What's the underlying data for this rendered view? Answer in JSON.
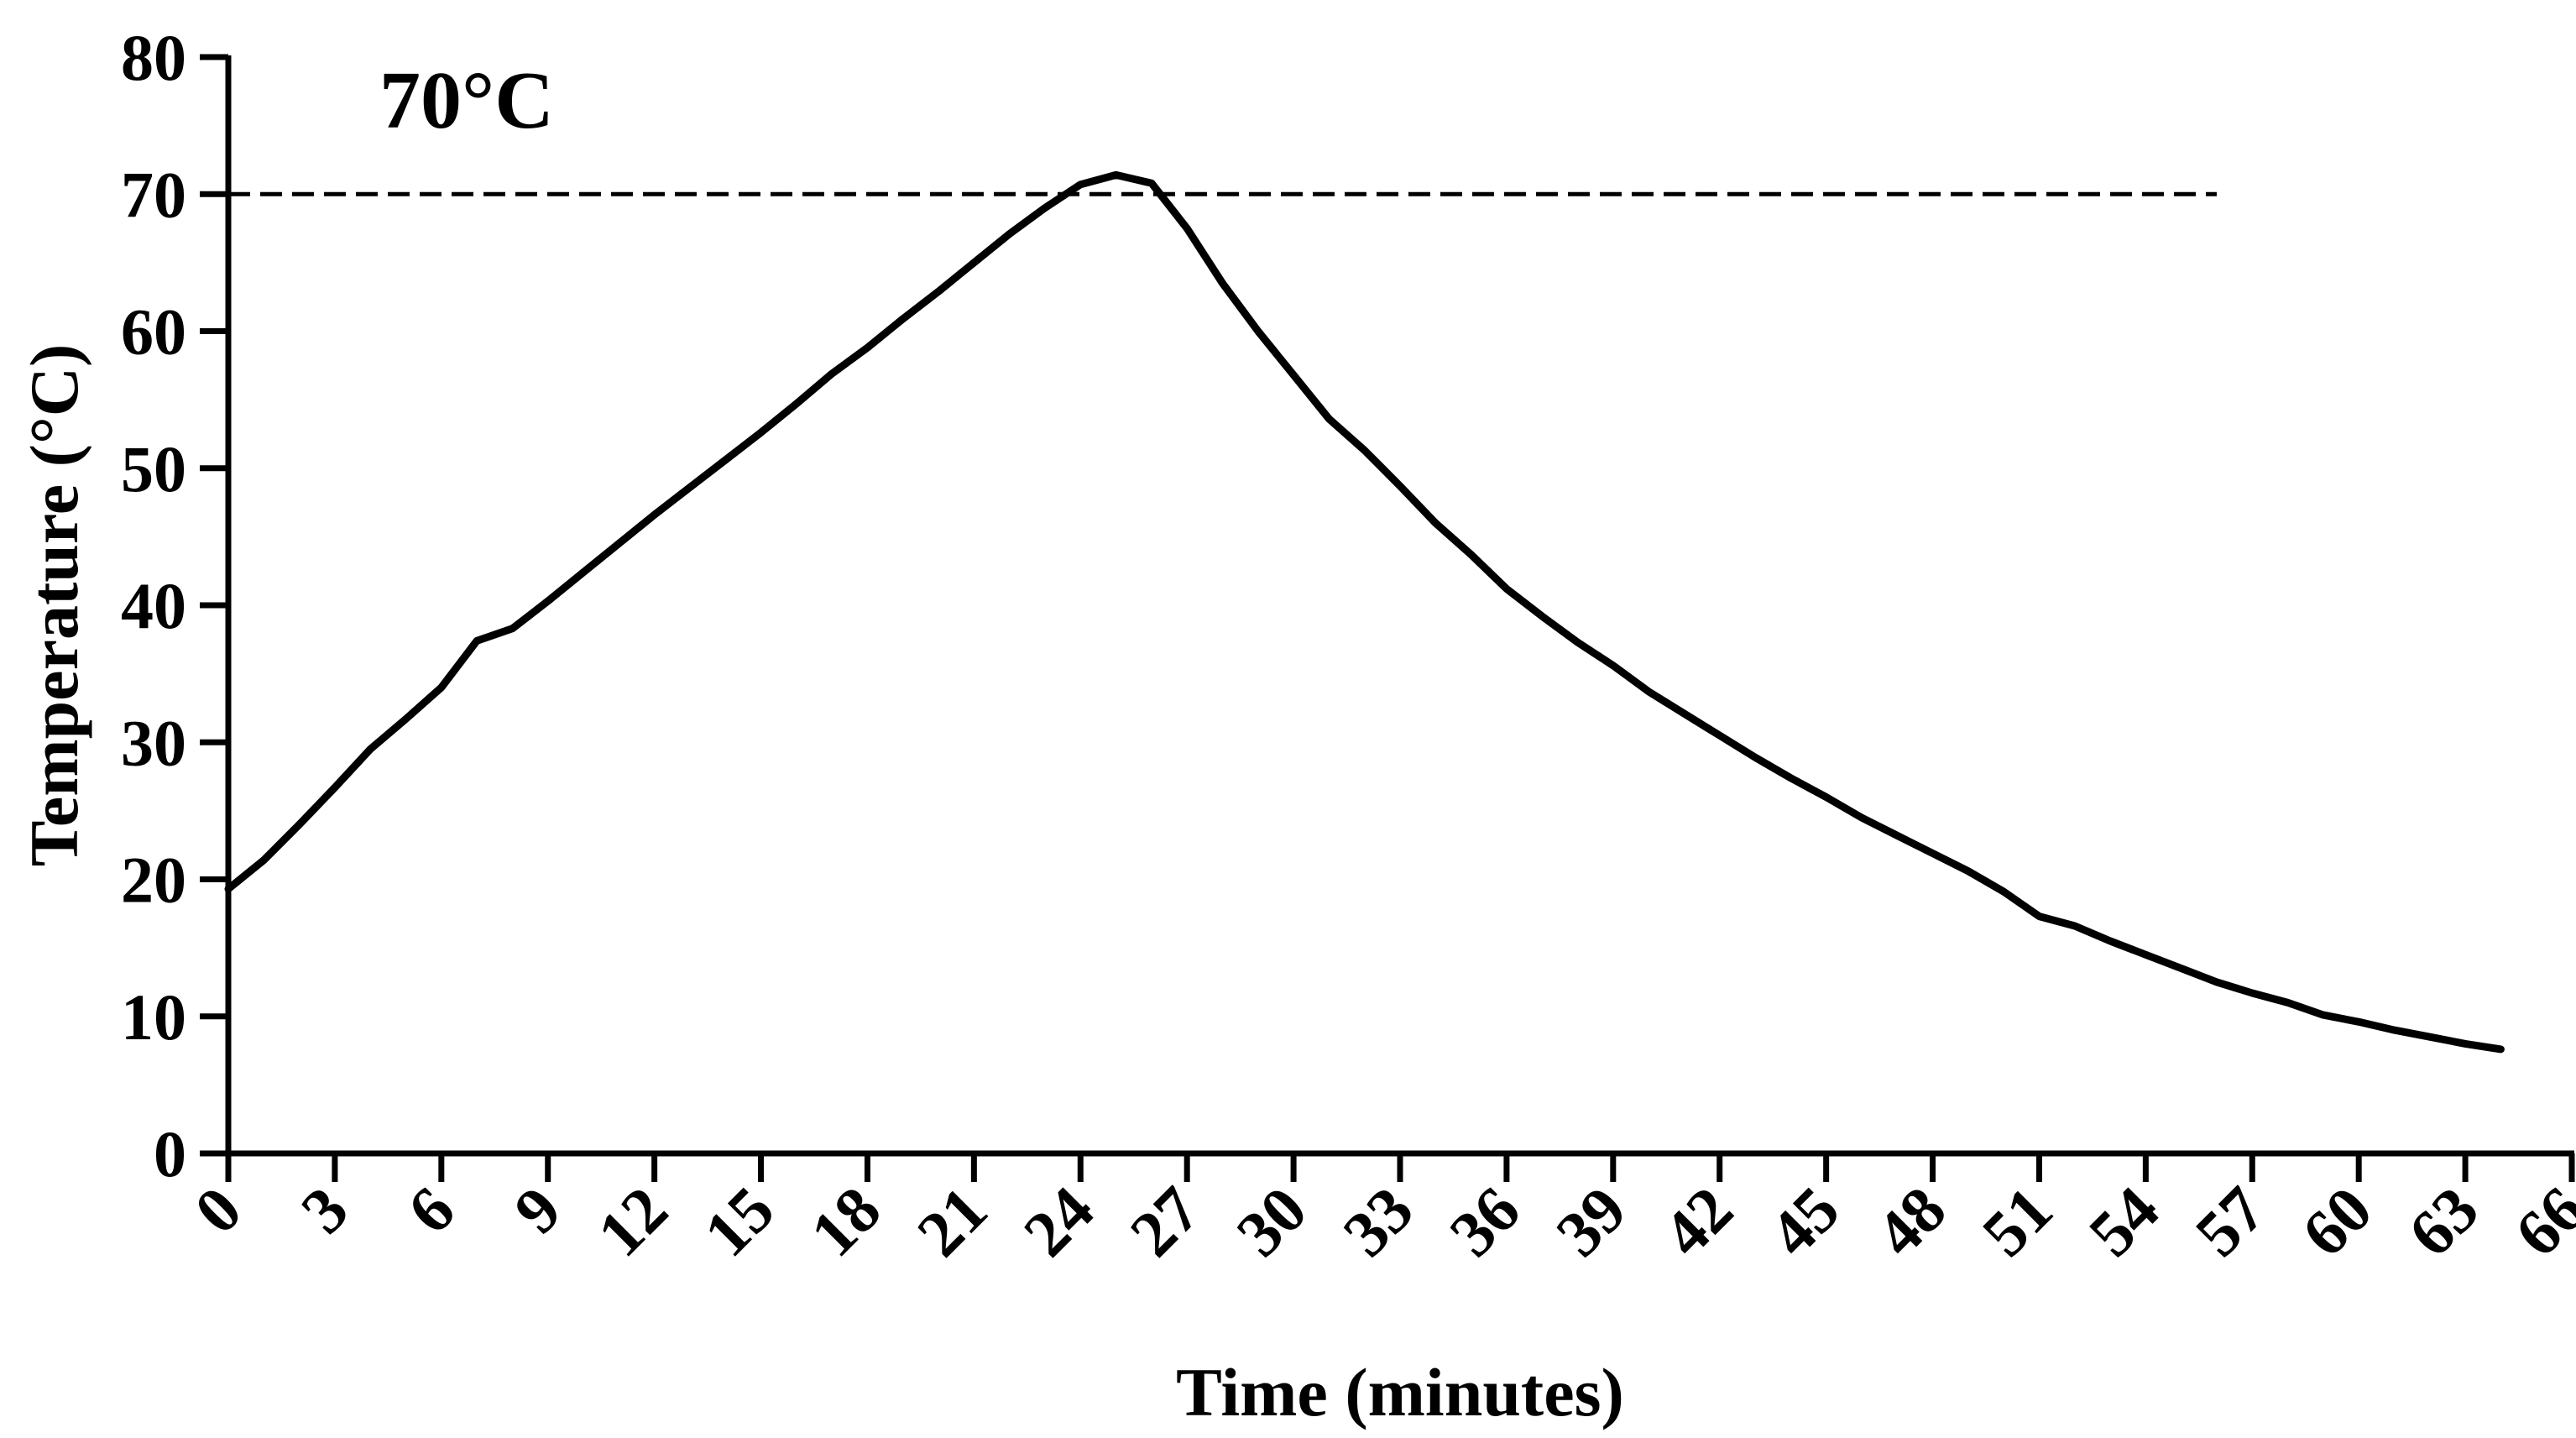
{
  "chart_data": {
    "type": "line",
    "title": "",
    "xlabel": "Time (minutes)",
    "ylabel": "Temperature (°C)",
    "xlim": [
      0,
      66
    ],
    "ylim": [
      0,
      80
    ],
    "x_ticks": [
      0,
      3,
      6,
      9,
      12,
      15,
      18,
      21,
      24,
      27,
      30,
      33,
      36,
      39,
      42,
      45,
      48,
      51,
      54,
      57,
      60,
      63,
      66
    ],
    "y_ticks": [
      0,
      10,
      20,
      30,
      40,
      50,
      60,
      70,
      80
    ],
    "grid": false,
    "legend": "none",
    "series": [
      {
        "x": [
          0,
          1,
          2,
          3,
          4,
          5,
          6,
          7,
          8,
          9,
          10,
          11,
          12,
          13,
          14,
          15,
          16,
          17,
          18,
          19,
          20,
          21,
          22,
          23,
          24,
          25,
          26,
          27,
          28,
          29,
          30,
          31,
          32,
          33,
          34,
          35,
          36,
          37,
          38,
          39,
          40,
          41,
          42,
          43,
          44,
          45,
          46,
          47,
          48,
          49,
          50,
          51,
          52,
          53,
          54,
          55,
          56,
          57,
          58,
          59,
          60,
          61,
          62,
          63,
          64
        ],
        "y": [
          19.3,
          21.4,
          24.0,
          26.7,
          29.5,
          31.7,
          34.0,
          37.4,
          38.3,
          40.3,
          42.4,
          44.5,
          46.6,
          48.6,
          50.6,
          52.6,
          54.7,
          56.9,
          58.8,
          60.9,
          62.9,
          65.0,
          67.1,
          69.0,
          70.7,
          71.4,
          70.8,
          67.5,
          63.5,
          60.0,
          56.8,
          53.6,
          51.3,
          48.7,
          46.0,
          43.7,
          41.2,
          39.2,
          37.3,
          35.6,
          33.7,
          32.1,
          30.5,
          28.9,
          27.4,
          26.0,
          24.5,
          23.2,
          21.9,
          20.6,
          19.1,
          17.3,
          16.6,
          15.5,
          14.5,
          13.5,
          12.5,
          11.7,
          11.0,
          10.1,
          9.6,
          9.0,
          8.5,
          8.0,
          7.6
        ],
        "color": "#000000",
        "line_style": "solid"
      }
    ],
    "reference_line": {
      "y": 70,
      "x_range": [
        0,
        56
      ],
      "label": "70°C",
      "line_style": "dashed",
      "color": "#000000"
    }
  }
}
